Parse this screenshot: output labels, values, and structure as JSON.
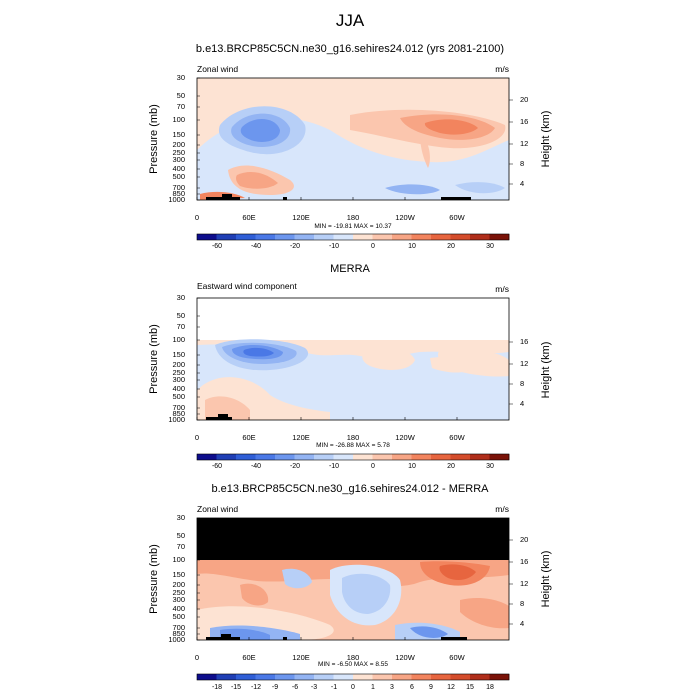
{
  "page_title": "JJA",
  "chart_data": [
    {
      "type": "heatmap",
      "title": "b.e13.BRCP85C5CN.ne30_g16.sehires24.012 (yrs 2081-2100)",
      "left_label": "Zonal wind",
      "units_label": "m/s",
      "ylabel": "Pressure (mb)",
      "ylabel_right": "Height (km)",
      "xlim": [
        0,
        360
      ],
      "ylim": [
        1000,
        30
      ],
      "pressure_ticks": [
        "30",
        "50",
        "70",
        "100",
        "150",
        "200",
        "250",
        "300",
        "400",
        "500",
        "700",
        "850",
        "1000"
      ],
      "height_ticks": [
        "20",
        "16",
        "12",
        "8",
        "4"
      ],
      "longitude_ticks": [
        "0",
        "60E",
        "120E",
        "180",
        "120W",
        "60W"
      ],
      "stats": "MIN = -19.81  MAX =  10.37",
      "colorbar_labels": [
        "-60",
        "-40",
        "-20",
        "-10",
        "0",
        "10",
        "20",
        "30"
      ],
      "colorbar_colors": [
        "#0d0d8c",
        "#1f3fb5",
        "#2f5ed6",
        "#4a78e6",
        "#6c96ee",
        "#93b4f3",
        "#b7cff7",
        "#d8e6fb",
        "#fde3d3",
        "#fbc6ae",
        "#f7a585",
        "#f2845e",
        "#e7653f",
        "#d44c2b",
        "#b02e1a",
        "#7a1208"
      ],
      "max_pressure_data": 30
    },
    {
      "type": "heatmap",
      "title": "MERRA",
      "left_label": "Eastward wind component",
      "units_label": "m/s",
      "ylabel": "Pressure (mb)",
      "ylabel_right": "Height (km)",
      "xlim": [
        0,
        360
      ],
      "ylim": [
        1000,
        30
      ],
      "pressure_ticks": [
        "30",
        "50",
        "70",
        "100",
        "150",
        "200",
        "250",
        "300",
        "400",
        "500",
        "700",
        "850",
        "1000"
      ],
      "height_ticks": [
        "16",
        "12",
        "8",
        "4"
      ],
      "longitude_ticks": [
        "0",
        "60E",
        "120E",
        "180",
        "120W",
        "60W"
      ],
      "stats": "MIN = -26.88  MAX =  5.78",
      "colorbar_labels": [
        "-60",
        "-40",
        "-20",
        "-10",
        "0",
        "10",
        "20",
        "30"
      ],
      "colorbar_colors": [
        "#0d0d8c",
        "#1f3fb5",
        "#2f5ed6",
        "#4a78e6",
        "#6c96ee",
        "#93b4f3",
        "#b7cff7",
        "#d8e6fb",
        "#fde3d3",
        "#fbc6ae",
        "#f7a585",
        "#f2845e",
        "#e7653f",
        "#d44c2b",
        "#b02e1a",
        "#7a1208"
      ],
      "max_pressure_data": 100
    },
    {
      "type": "heatmap",
      "title": "b.e13.BRCP85C5CN.ne30_g16.sehires24.012 - MERRA",
      "left_label": "Zonal wind",
      "units_label": "m/s",
      "ylabel": "Pressure (mb)",
      "ylabel_right": "Height (km)",
      "xlim": [
        0,
        360
      ],
      "ylim": [
        1000,
        30
      ],
      "pressure_ticks": [
        "30",
        "50",
        "70",
        "100",
        "150",
        "200",
        "250",
        "300",
        "400",
        "500",
        "700",
        "850",
        "1000"
      ],
      "height_ticks": [
        "20",
        "16",
        "12",
        "8",
        "4"
      ],
      "longitude_ticks": [
        "0",
        "60E",
        "120E",
        "180",
        "120W",
        "60W"
      ],
      "stats": "MIN = -6.50  MAX =  8.55",
      "colorbar_labels": [
        "-18",
        "-15",
        "-12",
        "-9",
        "-6",
        "-3",
        "-1",
        "0",
        "1",
        "3",
        "6",
        "9",
        "12",
        "15",
        "18"
      ],
      "colorbar_colors": [
        "#0d0d8c",
        "#1f3fb5",
        "#2f5ed6",
        "#4a78e6",
        "#6c96ee",
        "#93b4f3",
        "#b7cff7",
        "#d8e6fb",
        "#fde3d3",
        "#fbc6ae",
        "#f7a585",
        "#f2845e",
        "#e7653f",
        "#d44c2b",
        "#b02e1a",
        "#7a1208"
      ],
      "missing_region": "above 100 mb",
      "max_pressure_data": 100
    }
  ]
}
